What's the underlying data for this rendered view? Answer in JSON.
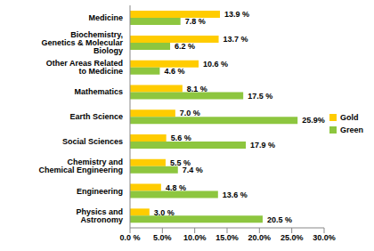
{
  "chart_data": {
    "type": "bar",
    "orientation": "horizontal",
    "grid": false,
    "legend": "right",
    "data_labels": true,
    "categories": [
      "Medicine",
      "Biochemistry, Genetics & Molecular Biology",
      "Other Areas Related to Medicine",
      "Mathematics",
      "Earth Science",
      "Social Sciences",
      "Chemistry and Chemical Engineering",
      "Engineering",
      "Physics and Astronomy"
    ],
    "series": [
      {
        "name": "Gold",
        "color": "#ffcc00",
        "values": [
          13.9,
          13.7,
          10.6,
          8.1,
          7.0,
          5.6,
          5.5,
          4.8,
          3.0
        ],
        "value_labels": [
          "13.9 %",
          "13.7 %",
          "10.6 %",
          "8.1 %",
          "7.0 %",
          "5.6 %",
          "5.5 %",
          "4.8 %",
          "3.0 %"
        ]
      },
      {
        "name": "Green",
        "color": "#8dc63f",
        "values": [
          7.8,
          6.2,
          4.6,
          17.5,
          25.9,
          17.9,
          7.4,
          13.6,
          20.5
        ],
        "value_labels": [
          "7.8 %",
          "6.2 %",
          "4.6 %",
          "17.5 %",
          "25.9%",
          "17.9 %",
          "7.4 %",
          "13.6 %",
          "20.5 %"
        ]
      }
    ],
    "xlim": [
      0,
      30
    ],
    "xticks": [
      {
        "value": 0,
        "label": "0.0 %"
      },
      {
        "value": 5,
        "label": "5.0%"
      },
      {
        "value": 10,
        "label": "10.0%"
      },
      {
        "value": 15,
        "label": "15.0%"
      },
      {
        "value": 20,
        "label": "20.0%"
      },
      {
        "value": 25,
        "label": "25.0%"
      },
      {
        "value": 30,
        "label": "30.0%"
      }
    ]
  }
}
